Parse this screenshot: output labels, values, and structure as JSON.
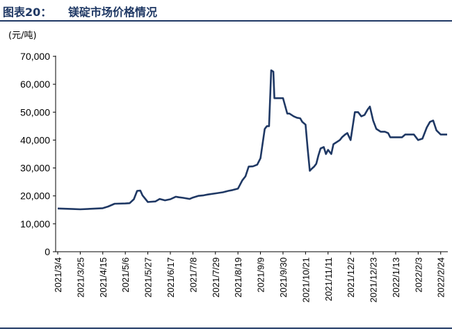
{
  "header": {
    "figure_label": "图表20：",
    "figure_title": "镁碇市场价格情况"
  },
  "chart_data": {
    "type": "line",
    "title": "镁碇市场价格情况",
    "unit_label": "(元/吨)",
    "xlabel": "",
    "ylabel": "",
    "ylim": [
      0,
      70000
    ],
    "yticks": [
      0,
      10000,
      20000,
      30000,
      40000,
      50000,
      60000,
      70000
    ],
    "ytick_labels": [
      "0",
      "10,000",
      "20,000",
      "30,000",
      "40,000",
      "50,000",
      "60,000",
      "70,000"
    ],
    "xtick_labels": [
      "2021/3/4",
      "2021/3/25",
      "2021/4/15",
      "2021/5/6",
      "2021/5/27",
      "2021/6/17",
      "2021/7/8",
      "2021/7/29",
      "2021/8/19",
      "2021/9/9",
      "2021/9/30",
      "2021/10/21",
      "2021/11/11",
      "2021/12/2",
      "2021/12/23",
      "2022/1/13",
      "2022/2/3",
      "2022/2/24"
    ],
    "grid": false,
    "legend": "none",
    "line_color": "#1f3864",
    "series": [
      {
        "x": [
          "2021/3/4",
          "2021/3/18",
          "2021/3/25",
          "2021/4/5",
          "2021/4/15",
          "2021/4/20",
          "2021/4/26",
          "2021/5/6",
          "2021/5/10",
          "2021/5/14",
          "2021/5/17",
          "2021/5/20",
          "2021/5/22",
          "2021/5/27",
          "2021/6/3",
          "2021/6/7",
          "2021/6/12",
          "2021/6/17",
          "2021/6/22",
          "2021/6/25",
          "2021/6/29",
          "2021/7/5",
          "2021/7/8",
          "2021/7/13",
          "2021/7/18",
          "2021/7/22",
          "2021/7/29",
          "2021/8/5",
          "2021/8/10",
          "2021/8/14",
          "2021/8/19",
          "2021/8/23",
          "2021/8/26",
          "2021/8/29",
          "2021/9/2",
          "2021/9/6",
          "2021/9/9",
          "2021/9/13",
          "2021/9/15",
          "2021/9/17",
          "2021/9/19",
          "2021/9/21",
          "2021/9/22",
          "2021/9/24",
          "2021/9/25",
          "2021/9/27",
          "2021/9/30",
          "2021/10/4",
          "2021/10/6",
          "2021/10/10",
          "2021/10/13",
          "2021/10/16",
          "2021/10/18",
          "2021/10/21",
          "2021/10/23",
          "2021/10/25",
          "2021/10/27",
          "2021/10/29",
          "2021/10/31",
          "2021/11/2",
          "2021/11/4",
          "2021/11/7",
          "2021/11/9",
          "2021/11/11",
          "2021/11/14",
          "2021/11/16",
          "2021/11/18",
          "2021/11/20",
          "2021/11/22",
          "2021/11/24",
          "2021/11/27",
          "2021/11/29",
          "2021/12/2",
          "2021/12/6",
          "2021/12/9",
          "2021/12/12",
          "2021/12/15",
          "2021/12/18",
          "2021/12/20",
          "2021/12/23",
          "2021/12/26",
          "2021/12/30",
          "2022/1/3",
          "2022/1/6",
          "2022/1/8",
          "2022/1/10",
          "2022/1/13",
          "2022/1/16",
          "2022/1/19",
          "2022/1/22",
          "2022/1/26",
          "2022/1/30",
          "2022/2/3",
          "2022/2/7",
          "2022/2/11",
          "2022/2/14",
          "2022/2/17",
          "2022/2/20",
          "2022/2/24",
          "2022/2/26",
          "2022/2/28",
          "2022/3/2"
        ],
        "values": [
          15500,
          15300,
          15200,
          15400,
          15600,
          16200,
          17200,
          17300,
          17400,
          18800,
          21800,
          21900,
          20200,
          17800,
          18000,
          18900,
          18400,
          18800,
          19700,
          19500,
          19300,
          18900,
          19400,
          20000,
          20200,
          20500,
          20900,
          21300,
          21800,
          22100,
          22600,
          25500,
          27000,
          30500,
          30600,
          31200,
          33500,
          44000,
          45000,
          45000,
          65000,
          64500,
          55000,
          55000,
          55000,
          55000,
          55000,
          49500,
          49500,
          48500,
          48000,
          47800,
          46500,
          45500,
          37000,
          29000,
          29800,
          30500,
          31500,
          34500,
          37000,
          37500,
          35000,
          36500,
          35000,
          38500,
          39000,
          39500,
          40000,
          41000,
          42000,
          42500,
          40000,
          50000,
          50000,
          48500,
          49000,
          51000,
          52000,
          47000,
          44000,
          43000,
          43000,
          42500,
          41000,
          41000,
          41000,
          41000,
          41000,
          42000,
          42000,
          42000,
          40000,
          40500,
          44500,
          46500,
          47000,
          43500,
          42000,
          42000,
          42000,
          42000
        ]
      }
    ]
  }
}
